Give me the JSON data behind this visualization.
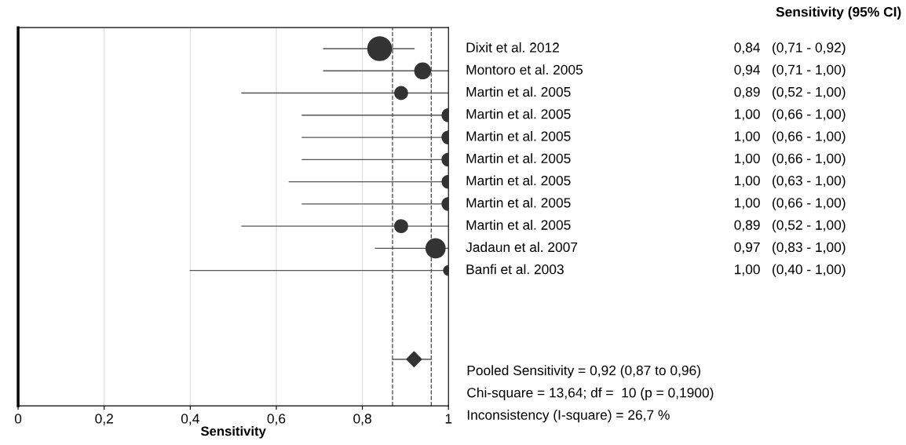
{
  "chart_data": {
    "type": "bubble",
    "orientation": "horizontal",
    "xlabel": "Sensitivity",
    "categories": [
      "Dixit et al. 2012",
      "Montoro et al. 2005",
      "Martin et al. 2005",
      "Martin et al. 2005",
      "Martin et al. 2005",
      "Martin et al. 2005",
      "Martin et al. 2005",
      "Martin et al. 2005",
      "Martin et al. 2005",
      "Jadaun et al. 2007",
      "Banfi et al. 2003",
      null,
      null,
      null,
      null
    ],
    "series": [
      {
        "color": "#333333",
        "marker": "circle",
        "values": [
          0.84,
          0.94,
          0.89,
          1.0,
          1.0,
          1.0,
          1.0,
          1.0,
          0.89,
          0.97,
          1.0,
          null,
          null,
          null,
          null
        ],
        "sizes": [
          1,
          0.45,
          0.3,
          0.3,
          0.3,
          0.3,
          0.3,
          0.3,
          0.3,
          0.65,
          0.17,
          null,
          null,
          null,
          null
        ],
        "errors": [
          [
            0.71,
            0.92
          ],
          [
            0.71,
            1.0
          ],
          [
            0.52,
            1.0
          ],
          [
            0.66,
            1.0
          ],
          [
            0.66,
            1.0
          ],
          [
            0.66,
            1.0
          ],
          [
            0.63,
            1.0
          ],
          [
            0.66,
            1.0
          ],
          [
            0.52,
            1.0
          ],
          [
            0.83,
            1.0
          ],
          [
            0.4,
            1.0
          ],
          null,
          null,
          null,
          null
        ],
        "value_labels": [
          "0,84   (0,71 - 0,92)",
          "0,94   (0,71 - 1,00)",
          "0,89   (0,52 - 1,00)",
          "1,00   (0,66 - 1,00)",
          "1,00   (0,66 - 1,00)",
          "1,00   (0,66 - 1,00)",
          "1,00   (0,63 - 1,00)",
          "1,00   (0,66 - 1,00)",
          "0,89   (0,52 - 1,00)",
          "0,97   (0,83 - 1,00)",
          "1,00   (0,40 - 1,00)",
          null,
          null,
          null,
          null
        ]
      },
      {
        "color": "#333333",
        "marker": "diamond",
        "values": [
          null,
          null,
          null,
          null,
          null,
          null,
          null,
          null,
          null,
          null,
          null,
          null,
          null,
          null,
          0.92
        ],
        "sizes": [
          null,
          null,
          null,
          null,
          null,
          null,
          null,
          null,
          null,
          null,
          null,
          null,
          null,
          null,
          0.25
        ],
        "errors": [
          null,
          null,
          null,
          null,
          null,
          null,
          null,
          null,
          null,
          null,
          null,
          null,
          null,
          null,
          [
            0.87,
            0.96
          ]
        ]
      }
    ],
    "xlim": [
      0,
      1
    ],
    "xticks": [
      0,
      {
        "value": 0.2,
        "label": "0,2"
      },
      {
        "value": 0.4,
        "label": "0,4"
      },
      {
        "value": 0.6,
        "label": "0,6"
      },
      {
        "value": 0.8,
        "label": "0,8"
      },
      1
    ],
    "ref_lines": [
      {
        "axis": "x",
        "value": 0.87,
        "color": "#555555",
        "line_style": "dashed"
      },
      {
        "axis": "x",
        "value": 0.96,
        "color": "#555555",
        "line_style": "dashed"
      }
    ],
    "grid": "x",
    "tick_labels": "x",
    "annotations": [
      "Sensitivity (95% CI)",
      "Pooled Sensitivity = 0,92 (0,87 to 0,96)",
      "Chi-square = 13,64; df =  10 (p = 0,1900)",
      "Inconsistency (I-square) = 26,7 %"
    ]
  }
}
